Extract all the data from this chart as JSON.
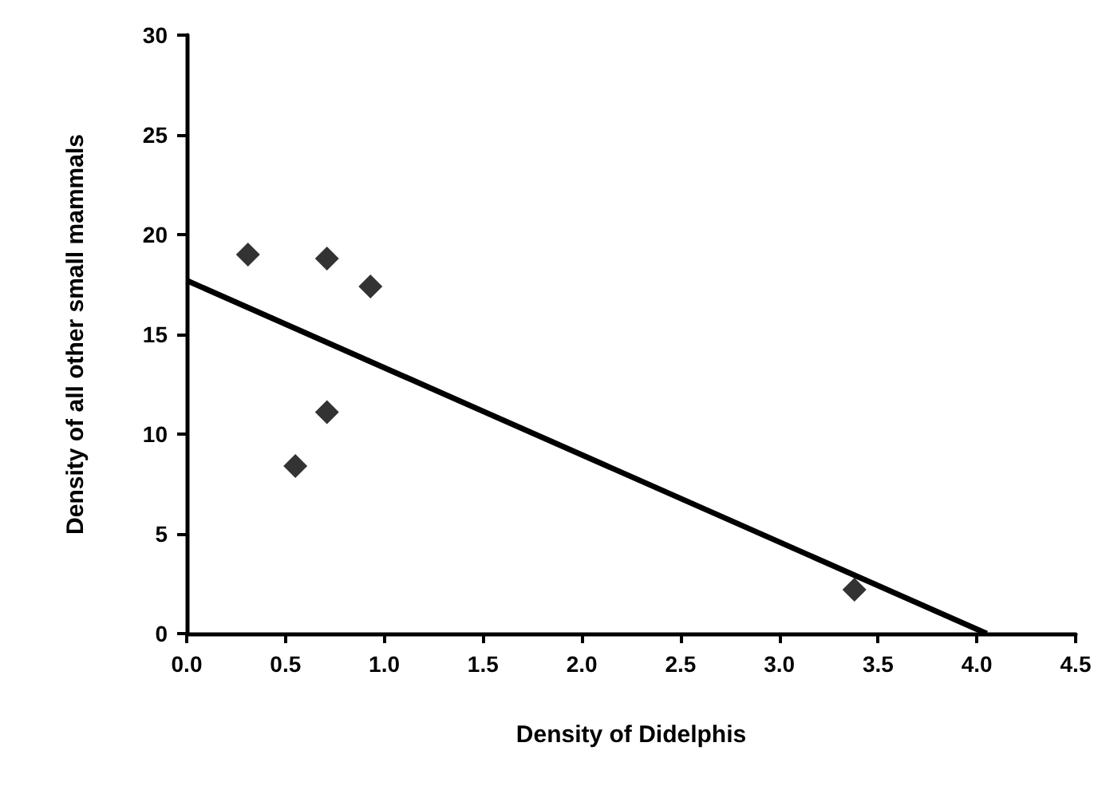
{
  "chart_data": {
    "type": "scatter",
    "xlabel": "Density of Didelphis",
    "ylabel": "Density of all other small mammals",
    "xlim": [
      0,
      4.5
    ],
    "xticks": [
      {
        "value": 0,
        "label": "0.0"
      },
      {
        "value": 0.5,
        "label": "0.5"
      },
      {
        "value": 1,
        "label": "1.0"
      },
      {
        "value": 1.5,
        "label": "1.5"
      },
      {
        "value": 2,
        "label": "2.0"
      },
      {
        "value": 2.5,
        "label": "2.5"
      },
      {
        "value": 3,
        "label": "3.0"
      },
      {
        "value": 3.5,
        "label": "3.5"
      },
      {
        "value": 4,
        "label": "4.0"
      },
      {
        "value": 4.5,
        "label": "4.5"
      }
    ],
    "ylim": [
      0,
      30
    ],
    "yticks": [
      0,
      5,
      10,
      15,
      20,
      25,
      30
    ],
    "grid": false,
    "series": [
      {
        "color": "#000000",
        "marker": "diamond",
        "x": [
          0.31,
          0.71,
          0.93,
          0.71,
          0.55,
          3.38
        ],
        "values": [
          19,
          18.8,
          17.4,
          11.1,
          8.4,
          2.2
        ]
      },
      {
        "type": "line",
        "color": "#000000",
        "marker": "none",
        "line_style": "solid",
        "x": [
          0,
          4.05
        ],
        "values": [
          17.7,
          0
        ]
      }
    ]
  }
}
